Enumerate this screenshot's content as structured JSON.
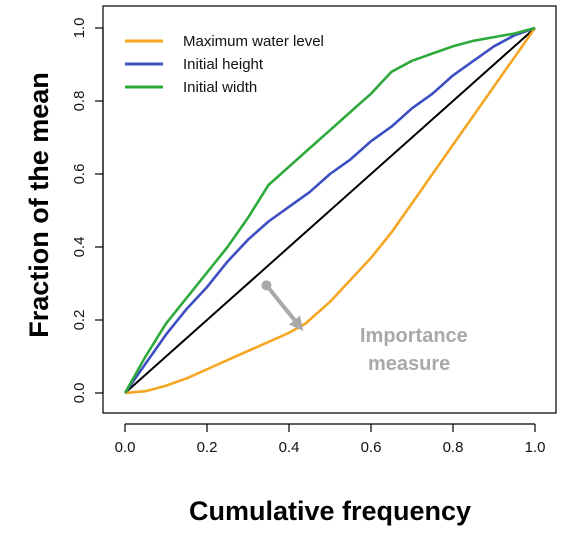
{
  "chart_data": {
    "type": "line",
    "title": "",
    "xlabel": "Cumulative frequency",
    "ylabel": "Fraction of the mean",
    "xlim": [
      0,
      1
    ],
    "ylim": [
      0,
      1
    ],
    "xticks": [
      0.0,
      0.2,
      0.4,
      0.6,
      0.8,
      1.0
    ],
    "xtick_labels": [
      "0.0",
      "0.2",
      "0.4",
      "0.6",
      "0.8",
      "1.0"
    ],
    "yticks": [
      0.0,
      0.2,
      0.4,
      0.6,
      0.8,
      1.0
    ],
    "ytick_labels": [
      "0.0",
      "0.2",
      "0.4",
      "0.6",
      "0.8",
      "1.0"
    ],
    "grid": false,
    "legend_position": "top-left",
    "series": [
      {
        "name": "Maximum water level",
        "color": "#f5a623",
        "x": [
          0,
          0.05,
          0.1,
          0.15,
          0.2,
          0.25,
          0.3,
          0.35,
          0.4,
          0.44,
          0.5,
          0.55,
          0.6,
          0.65,
          0.7,
          0.75,
          0.8,
          0.85,
          0.9,
          0.95,
          1.0
        ],
        "y": [
          0,
          0.005,
          0.02,
          0.04,
          0.065,
          0.09,
          0.115,
          0.14,
          0.165,
          0.19,
          0.25,
          0.31,
          0.37,
          0.44,
          0.52,
          0.6,
          0.68,
          0.76,
          0.84,
          0.92,
          1.0
        ]
      },
      {
        "name": "Initial height",
        "color": "#3d4ec2",
        "x": [
          0,
          0.05,
          0.1,
          0.15,
          0.2,
          0.25,
          0.3,
          0.35,
          0.4,
          0.45,
          0.5,
          0.55,
          0.6,
          0.65,
          0.7,
          0.75,
          0.8,
          0.85,
          0.9,
          0.95,
          1.0
        ],
        "y": [
          0,
          0.08,
          0.16,
          0.23,
          0.29,
          0.36,
          0.42,
          0.47,
          0.51,
          0.55,
          0.6,
          0.64,
          0.69,
          0.73,
          0.78,
          0.82,
          0.87,
          0.91,
          0.95,
          0.98,
          1.0
        ]
      },
      {
        "name": "Initial width",
        "color": "#2eaa3c",
        "x": [
          0,
          0.05,
          0.1,
          0.15,
          0.2,
          0.25,
          0.3,
          0.35,
          0.4,
          0.45,
          0.5,
          0.55,
          0.6,
          0.65,
          0.7,
          0.75,
          0.8,
          0.85,
          0.9,
          0.95,
          1.0
        ],
        "y": [
          0,
          0.1,
          0.19,
          0.26,
          0.33,
          0.4,
          0.48,
          0.57,
          0.62,
          0.67,
          0.72,
          0.77,
          0.82,
          0.88,
          0.91,
          0.93,
          0.95,
          0.965,
          0.975,
          0.985,
          1.0
        ]
      },
      {
        "name": "",
        "color": "#000000",
        "x": [
          0,
          1
        ],
        "y": [
          0,
          1
        ]
      }
    ],
    "annotation": {
      "text_line1": "Importance",
      "text_line2": "measure",
      "color": "#a9a9a9",
      "arrow_from": [
        0.345,
        0.295
      ],
      "arrow_to": [
        0.435,
        0.17
      ]
    }
  }
}
